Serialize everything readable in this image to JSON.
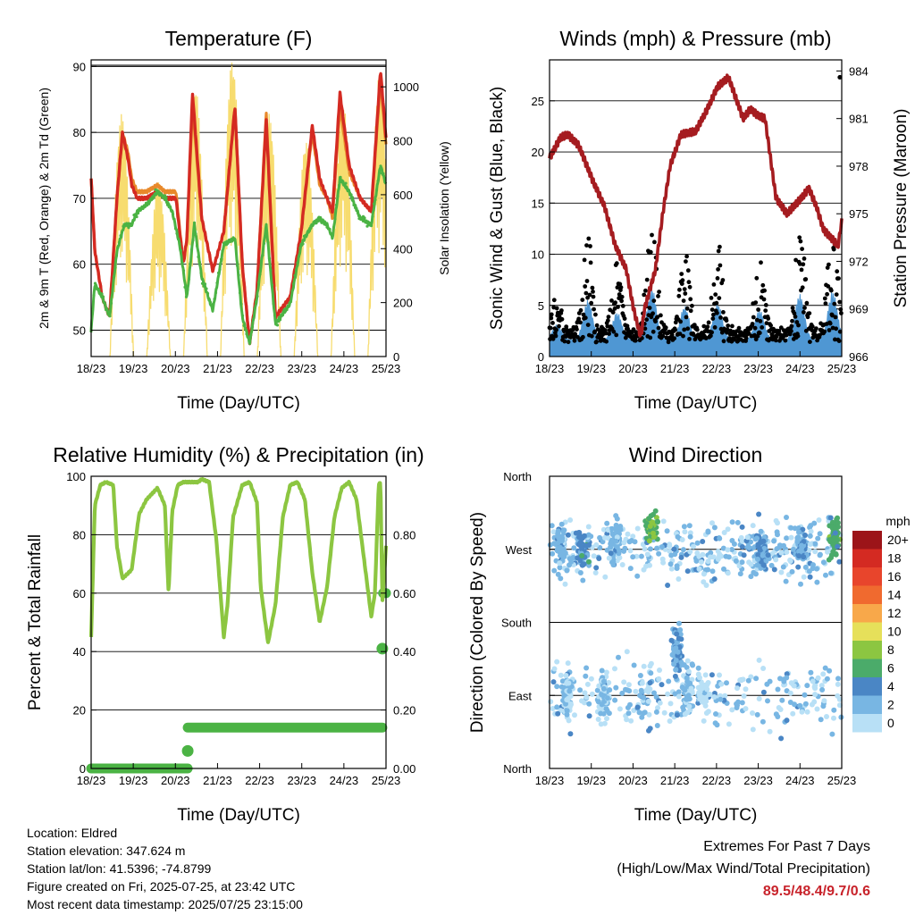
{
  "colors": {
    "temp_red": "#d42a22",
    "temp_orange": "#e8892b",
    "dewpoint_green": "#4bb344",
    "solar_yellow": "#f7dc6f",
    "wind_blue": "#4f97d3",
    "gust_black": "#000000",
    "pressure_maroon": "#a51c20",
    "rh_green": "#8cc641",
    "precip_green": "#4bb344",
    "extremes_red": "#c8232b"
  },
  "chart_data": [
    {
      "id": "temperature",
      "type": "line",
      "title": "Temperature (F)",
      "xlabel": "Time (Day/UTC)",
      "ylabel": "2m & 9m T (Red, Orange) & 2m Td (Green)",
      "ylabel_right": "Solar Insolation (Yellow)",
      "x_ticks": [
        "18/23",
        "19/23",
        "20/23",
        "21/23",
        "22/23",
        "23/23",
        "24/23",
        "25/23"
      ],
      "ylim": [
        46,
        91
      ],
      "y_ticks": [
        50,
        60,
        70,
        80,
        90
      ],
      "ylim_right": [
        0,
        1100
      ],
      "y_ticks_right": [
        0,
        200,
        400,
        600,
        800,
        1000
      ],
      "grid": "horizontal",
      "series": [
        {
          "id": "t9m",
          "color": "#e8892b",
          "width": 3.2,
          "x": [
            0,
            0.1,
            0.3,
            0.5,
            0.7,
            0.85,
            1.0,
            1.1,
            1.25,
            1.5,
            1.8,
            2.0,
            2.3,
            2.5,
            2.6,
            2.75,
            3.0,
            3.3,
            3.6,
            3.9,
            4.1,
            4.3,
            4.5,
            4.75,
            5.0,
            5.4,
            5.7,
            6.0,
            6.2,
            6.4,
            6.55,
            6.75,
            7.0,
            7.3,
            7.6,
            7.85,
            8.0
          ],
          "y": [
            73,
            62,
            55,
            52,
            70,
            80,
            77,
            73,
            71,
            71,
            72,
            71,
            71,
            60,
            64,
            84,
            67,
            59,
            65,
            84,
            60,
            48,
            56,
            83,
            52,
            55,
            65,
            80,
            72,
            70,
            67,
            84,
            74,
            70,
            68,
            88,
            78
          ]
        },
        {
          "id": "t2m",
          "color": "#d42a22",
          "width": 3.4,
          "x": [
            0,
            0.1,
            0.3,
            0.5,
            0.7,
            0.85,
            1.0,
            1.1,
            1.25,
            1.5,
            1.8,
            2.0,
            2.3,
            2.5,
            2.6,
            2.75,
            3.0,
            3.3,
            3.6,
            3.9,
            4.1,
            4.3,
            4.5,
            4.75,
            5.0,
            5.4,
            5.7,
            6.0,
            6.2,
            6.4,
            6.55,
            6.75,
            7.0,
            7.3,
            7.6,
            7.85,
            8.0
          ],
          "y": [
            73,
            62,
            55,
            52,
            70,
            80,
            76,
            72,
            70,
            70,
            71,
            70,
            70,
            60,
            64,
            86,
            67,
            59,
            65,
            84,
            60,
            48,
            56,
            82,
            52,
            55,
            65,
            81,
            73,
            70,
            68,
            86,
            75,
            70,
            68,
            89.5,
            79
          ]
        },
        {
          "id": "td2m",
          "color": "#4bb344",
          "width": 3,
          "x": [
            0,
            0.1,
            0.3,
            0.5,
            0.7,
            0.9,
            1.1,
            1.25,
            1.5,
            1.8,
            2.0,
            2.2,
            2.4,
            2.6,
            2.8,
            3.0,
            3.3,
            3.6,
            3.9,
            4.1,
            4.3,
            4.5,
            4.75,
            5.0,
            5.4,
            5.7,
            6.0,
            6.2,
            6.4,
            6.55,
            6.75,
            7.0,
            7.3,
            7.6,
            7.85,
            8.0
          ],
          "y": [
            50,
            57,
            55,
            52,
            62,
            66,
            66,
            68,
            69,
            71,
            70,
            68,
            63,
            55,
            66,
            58,
            53,
            63,
            64,
            52,
            48,
            55,
            66,
            51,
            54,
            63,
            66,
            67,
            66,
            64,
            73,
            71,
            67,
            66,
            75,
            72
          ]
        }
      ],
      "solar_peaks": [
        {
          "day": 0.83,
          "peak": 900
        },
        {
          "day": 1.83,
          "peak": 650
        },
        {
          "day": 2.83,
          "peak": 1000
        },
        {
          "day": 3.83,
          "peak": 1100
        },
        {
          "day": 4.83,
          "peak": 900
        },
        {
          "day": 5.83,
          "peak": 800
        },
        {
          "day": 6.83,
          "peak": 950
        },
        {
          "day": 7.83,
          "peak": 1050
        }
      ]
    },
    {
      "id": "winds",
      "type": "scatter",
      "title": "Winds (mph) & Pressure (mb)",
      "xlabel": "Time (Day/UTC)",
      "ylabel": "Sonic Wind & Gust (Blue, Black)",
      "ylabel_right": "Station Pressure (Maroon)",
      "x_ticks": [
        "18/23",
        "19/23",
        "20/23",
        "21/23",
        "22/23",
        "23/23",
        "24/23",
        "25/23"
      ],
      "ylim": [
        0,
        29
      ],
      "y_ticks": [
        0,
        5,
        10,
        15,
        20,
        25
      ],
      "ylim_right": [
        966,
        984.7
      ],
      "y_ticks_right": [
        966,
        969,
        972,
        975,
        978,
        981,
        984
      ],
      "grid": "horizontal",
      "pressure": {
        "x": [
          0,
          0.3,
          0.5,
          0.8,
          1.2,
          1.5,
          1.8,
          2.1,
          2.3,
          2.5,
          2.6,
          2.9,
          3.1,
          3.3,
          3.6,
          4.0,
          4.3,
          4.6,
          4.9,
          5.1,
          5.3,
          5.5,
          5.7,
          5.9,
          6.2,
          6.5,
          6.9,
          7.1,
          7.3,
          7.5,
          7.7,
          7.9,
          8.0
        ],
        "y": [
          978.5,
          979.8,
          980.0,
          979.3,
          977.0,
          975.5,
          973.0,
          971.5,
          969.0,
          967.2,
          969.0,
          971.5,
          975.0,
          978.0,
          980.0,
          980.2,
          981.5,
          983.0,
          983.6,
          982.3,
          981.0,
          981.6,
          981.2,
          981.0,
          976.0,
          975.0,
          976.0,
          976.6,
          975.5,
          974.0,
          973.5,
          973.0,
          974.5
        ]
      },
      "wind_bursts": [
        {
          "day": 0.2,
          "amp": 0.5
        },
        {
          "day": 1.05,
          "amp": 1.3
        },
        {
          "day": 1.85,
          "amp": 0.9
        },
        {
          "day": 2.8,
          "amp": 1.7
        },
        {
          "day": 3.7,
          "amp": 1.1
        },
        {
          "day": 4.6,
          "amp": 1.2
        },
        {
          "day": 5.75,
          "amp": 1.0
        },
        {
          "day": 6.85,
          "amp": 1.5
        },
        {
          "day": 7.75,
          "amp": 1.6
        }
      ],
      "max_gust": {
        "x": 7.95,
        "y": 27.3
      }
    },
    {
      "id": "humidity",
      "type": "line",
      "title": "Relative Humidity (%) & Precipitation (in)",
      "xlabel": "Time (Day/UTC)",
      "ylabel": "Percent & Total Rainfall",
      "x_ticks": [
        "18/23",
        "19/23",
        "20/23",
        "21/23",
        "22/23",
        "23/23",
        "24/23",
        "25/23"
      ],
      "ylim": [
        0,
        100
      ],
      "y_ticks": [
        0,
        20,
        40,
        60,
        80,
        100
      ],
      "y_ticks_right": [
        "0.00",
        "0.20",
        "0.40",
        "0.60",
        "0.80"
      ],
      "grid": "horizontal",
      "rh": {
        "x": [
          0,
          0.1,
          0.25,
          0.4,
          0.6,
          0.7,
          0.85,
          1.1,
          1.3,
          1.5,
          1.8,
          2.0,
          2.1,
          2.2,
          2.35,
          2.5,
          2.7,
          2.9,
          3.0,
          3.2,
          3.4,
          3.6,
          3.7,
          3.85,
          4.1,
          4.3,
          4.5,
          4.6,
          4.8,
          5.0,
          5.2,
          5.4,
          5.6,
          5.8,
          6.0,
          6.2,
          6.4,
          6.6,
          6.8,
          7.0,
          7.2,
          7.4,
          7.6,
          7.7,
          7.8,
          7.85,
          7.9,
          8.0
        ],
        "y": [
          45,
          90,
          97,
          98,
          97,
          76,
          65,
          68,
          87,
          92,
          96,
          90,
          60,
          88,
          97,
          98,
          98,
          98,
          99,
          98,
          78,
          45,
          56,
          86,
          97,
          98,
          91,
          62,
          43,
          56,
          86,
          97,
          98,
          92,
          67,
          50,
          62,
          86,
          96,
          98,
          92,
          72,
          52,
          60,
          97,
          98,
          57,
          76
        ]
      },
      "precip": {
        "x": [
          0,
          2.6,
          2.62,
          2.7,
          7.9,
          7.92,
          8.0
        ],
        "y": [
          0.0,
          0.0,
          0.14,
          0.14,
          0.14,
          0.6,
          0.6
        ]
      }
    },
    {
      "id": "wind_direction",
      "type": "scatter",
      "title": "Wind Direction",
      "xlabel": "Time (Day/UTC)",
      "ylabel": "Direction (Colored By Speed)",
      "x_ticks": [
        "18/23",
        "19/23",
        "20/23",
        "21/23",
        "22/23",
        "23/23",
        "24/23",
        "25/23"
      ],
      "y_ticks": [
        "North",
        "East",
        "South",
        "West",
        "North"
      ],
      "ylim": [
        0,
        360
      ],
      "grid": "horizontal",
      "colorbar_title": "mph",
      "colorbar_labels": [
        "20+",
        "18",
        "16",
        "14",
        "12",
        "10",
        "8",
        "6",
        "4",
        "2",
        "0"
      ],
      "colorbar_colors": [
        "#9c1419",
        "#d42a22",
        "#e8452c",
        "#f06a2f",
        "#f8a84a",
        "#e6e05a",
        "#8cc641",
        "#4bab6a",
        "#4a86c5",
        "#78b6e3",
        "#b8e0f6"
      ],
      "clusters": [
        {
          "day": 0.3,
          "dir": 270,
          "spread": 40,
          "speed": 2
        },
        {
          "day": 0.9,
          "dir": 270,
          "spread": 35,
          "speed": 4
        },
        {
          "day": 1.8,
          "dir": 280,
          "spread": 40,
          "speed": 2
        },
        {
          "day": 2.8,
          "dir": 295,
          "spread": 25,
          "speed": 7
        },
        {
          "day": 5.8,
          "dir": 270,
          "spread": 30,
          "speed": 3
        },
        {
          "day": 6.9,
          "dir": 270,
          "spread": 30,
          "speed": 3
        },
        {
          "day": 7.8,
          "dir": 285,
          "spread": 35,
          "speed": 6
        },
        {
          "day": 0.5,
          "dir": 90,
          "spread": 40,
          "speed": 1
        },
        {
          "day": 3.8,
          "dir": 100,
          "spread": 40,
          "speed": 1
        },
        {
          "day": 4.2,
          "dir": 90,
          "spread": 30,
          "speed": 0
        },
        {
          "day": 3.5,
          "dir": 150,
          "spread": 50,
          "speed": 3
        },
        {
          "day": 1.5,
          "dir": 90,
          "spread": 40,
          "speed": 1
        }
      ]
    }
  ],
  "station_info": {
    "location": "Location: Eldred",
    "elevation": "Station elevation: 347.624 m",
    "latlon": "Station lat/lon: 41.5396; -74.8799",
    "created": "Figure created on Fri, 2025-07-25, at 23:42 UTC",
    "recent": "Most recent data timestamp: 2025/07/25 23:15:00"
  },
  "extremes": {
    "title": "Extremes For Past 7 Days",
    "subtitle": "(High/Low/Max Wind/Total Precipitation)",
    "values": "89.5/48.4/9.7/0.6"
  }
}
